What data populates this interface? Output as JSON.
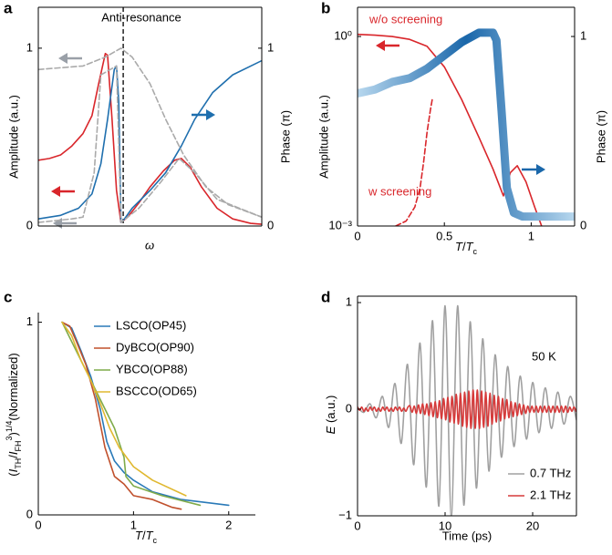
{
  "chart_data": [
    {
      "type": "line",
      "panel_label": "a",
      "annotation": "Anti-resonance",
      "vline": 0.38,
      "xlabel": "ω",
      "ylabel": "Amplitude (a.u.)",
      "y2label": "Phase (π)",
      "box": true,
      "xlim": [
        0,
        1
      ],
      "xticks": [],
      "ylim": [
        0,
        1.23
      ],
      "yticks": [
        0,
        1
      ],
      "y2lim": [
        0,
        1.23
      ],
      "y2ticks": [
        0,
        1
      ],
      "series": [
        {
          "color": "#d9262b",
          "x": [
            0,
            0.05,
            0.1,
            0.15,
            0.2,
            0.24,
            0.27,
            0.3,
            0.31,
            0.33,
            0.35,
            0.37,
            0.4,
            0.45,
            0.5,
            0.56,
            0.61,
            0.64,
            0.68,
            0.73,
            0.8,
            0.87,
            0.95,
            1
          ],
          "values": [
            0.37,
            0.38,
            0.4,
            0.45,
            0.52,
            0.62,
            0.8,
            0.97,
            0.96,
            0.6,
            0.2,
            0.02,
            0.05,
            0.13,
            0.22,
            0.31,
            0.37,
            0.38,
            0.33,
            0.22,
            0.1,
            0.04,
            0.015,
            0.01
          ]
        },
        {
          "color": "#1f6fae",
          "axis": "y2",
          "x": [
            0,
            0.1,
            0.18,
            0.24,
            0.28,
            0.31,
            0.34,
            0.35,
            0.36,
            0.37,
            0.38,
            0.42,
            0.5,
            0.57,
            0.64,
            0.7,
            0.78,
            0.87,
            1
          ],
          "values": [
            0.04,
            0.06,
            0.1,
            0.18,
            0.35,
            0.6,
            0.88,
            0.9,
            0.7,
            0.02,
            0.03,
            0.1,
            0.2,
            0.3,
            0.45,
            0.6,
            0.75,
            0.85,
            0.93
          ]
        },
        {
          "color": "#aaaaaa",
          "dash": true,
          "x": [
            0,
            0.1,
            0.2,
            0.3,
            0.37,
            0.42,
            0.5,
            0.57,
            0.65,
            0.75,
            0.85,
            1
          ],
          "values": [
            0.88,
            0.89,
            0.9,
            0.95,
            1,
            0.95,
            0.8,
            0.6,
            0.4,
            0.22,
            0.12,
            0.05
          ]
        },
        {
          "color": "#aaaaaa",
          "dash": true,
          "axis": "y2",
          "x": [
            0,
            0.15,
            0.2,
            0.25,
            0.28,
            0.35,
            0.37,
            0.45,
            0.55,
            0.63,
            0.7,
            0.8,
            1
          ],
          "values": [
            0.02,
            0.04,
            0.05,
            0.3,
            0.85,
            0.9,
            0.02,
            0.1,
            0.25,
            0.38,
            0.3,
            0.15,
            0.05
          ]
        }
      ]
    },
    {
      "type": "line",
      "panel_label": "b",
      "xlabel": [
        "T",
        "/",
        "T",
        "c"
      ],
      "ylabel": "Amplitude (a.u.)",
      "y2label": "Phase (π)",
      "box": true,
      "xlim": [
        0,
        1.25
      ],
      "xticks": [
        0,
        0.5,
        1
      ],
      "ylim": [
        0.001,
        2.9
      ],
      "ylog": true,
      "yticks": [
        {
          "value": 1,
          "label": "10⁰"
        },
        {
          "value": 0.001,
          "label": "10⁻³"
        }
      ],
      "y2lim": [
        0,
        1.154
      ],
      "y2ticks": [
        0,
        1
      ],
      "series": [
        {
          "name": "w/o screening",
          "color": "#d9262b",
          "x": [
            0,
            0.1,
            0.2,
            0.3,
            0.4,
            0.5,
            0.6,
            0.7,
            0.78,
            0.84,
            0.88,
            0.92,
            0.97,
            1.02,
            1.06
          ],
          "values": [
            1.08,
            1.05,
            1.0,
            0.9,
            0.7,
            0.33,
            0.1,
            0.025,
            0.008,
            0.003,
            0.007,
            0.009,
            0.005,
            0.002,
            0.001
          ]
        },
        {
          "name": "w screening",
          "color": "#d9262b",
          "dash": true,
          "x": [
            0.22,
            0.28,
            0.33,
            0.36,
            0.38,
            0.4,
            0.42,
            0.43
          ],
          "values": [
            0.001,
            0.0012,
            0.002,
            0.004,
            0.01,
            0.03,
            0.07,
            0.1
          ]
        },
        {
          "color": "#1a67aa",
          "axis": "y2",
          "line_width": 9,
          "gradient": [
            "#b7d7ee",
            "#1a67aa",
            "#b7d7ee"
          ],
          "x": [
            0,
            0.1,
            0.2,
            0.3,
            0.4,
            0.5,
            0.6,
            0.7,
            0.78,
            0.8,
            0.83,
            0.86,
            0.9,
            0.95,
            1.25
          ],
          "values": [
            0.7,
            0.72,
            0.76,
            0.78,
            0.83,
            0.9,
            0.97,
            1.02,
            1.02,
            0.98,
            0.6,
            0.2,
            0.07,
            0.05,
            0.05
          ]
        }
      ]
    },
    {
      "type": "line",
      "panel_label": "c",
      "xlabel": [
        "T",
        "/",
        "T",
        "c"
      ],
      "ylabel": [
        "(",
        "I",
        "TH",
        "/",
        "I",
        "FH",
        "3",
        ")",
        "1/4",
        "(Normalized)"
      ],
      "box": false,
      "xlim": [
        0,
        2.28
      ],
      "xticks": [
        0,
        1,
        2
      ],
      "ylim": [
        0,
        1.05
      ],
      "yticks": [
        0,
        1
      ],
      "legend": "upper center",
      "series": [
        {
          "name": "LSCO(OP45)",
          "color": "#2a7ab8",
          "x": [
            0.25,
            0.35,
            0.45,
            0.55,
            0.65,
            0.72,
            0.8,
            0.9,
            1,
            1.2,
            1.5,
            2
          ],
          "values": [
            1,
            0.97,
            0.85,
            0.72,
            0.55,
            0.38,
            0.28,
            0.22,
            0.18,
            0.12,
            0.08,
            0.05
          ]
        },
        {
          "name": "DyBCO(OP90)",
          "color": "#c0502c",
          "x": [
            0.25,
            0.33,
            0.4,
            0.5,
            0.6,
            0.7,
            0.8,
            0.9,
            1,
            1.2,
            1.4,
            1.5
          ],
          "values": [
            1,
            0.98,
            0.9,
            0.78,
            0.6,
            0.35,
            0.2,
            0.16,
            0.1,
            0.08,
            0.04,
            0.03
          ]
        },
        {
          "name": "YBCO(OP88)",
          "color": "#7fab4a",
          "x": [
            0.25,
            0.3,
            0.4,
            0.5,
            0.6,
            0.7,
            0.8,
            0.9,
            0.92,
            1,
            1.3,
            1.7
          ],
          "values": [
            1,
            0.95,
            0.85,
            0.75,
            0.65,
            0.55,
            0.45,
            0.3,
            0.2,
            0.15,
            0.1,
            0.05
          ]
        },
        {
          "name": "BSCCO(OD65)",
          "color": "#e0b830",
          "x": [
            0.25,
            0.35,
            0.45,
            0.55,
            0.65,
            0.75,
            0.85,
            1,
            1.2,
            1.55
          ],
          "values": [
            1,
            0.93,
            0.8,
            0.7,
            0.58,
            0.45,
            0.35,
            0.25,
            0.18,
            0.1
          ]
        }
      ]
    },
    {
      "type": "line",
      "panel_label": "d",
      "annotation": "50 K",
      "xlabel": "Time (ps)",
      "ylabel": [
        "E",
        " (a.u.)"
      ],
      "box": true,
      "smooth": true,
      "xlim": [
        0,
        25
      ],
      "xticks": [
        0,
        10,
        20
      ],
      "ylim": [
        -1,
        1.06
      ],
      "yticks": [
        {
          "value": -1,
          "label": "−1"
        },
        0,
        1
      ],
      "legend": "lower right",
      "series": [
        {
          "name": "0.7 THz",
          "color": "#a0a0a0",
          "x": [
            0,
            0.71,
            1.43,
            2.14,
            2.86,
            3.57,
            4.29,
            5,
            5.71,
            6.43,
            7.14,
            7.86,
            8.57,
            9.29,
            10,
            10.71,
            11.43,
            12.14,
            12.86,
            13.57,
            14.29,
            15,
            15.71,
            16.43,
            17.14,
            17.86,
            18.57,
            19.29,
            20,
            20.71,
            21.43,
            22.14,
            22.86,
            23.57,
            24.29,
            25
          ],
          "values": [
            0.02,
            -0.03,
            0.05,
            -0.08,
            0.12,
            -0.17,
            0.24,
            -0.32,
            0.42,
            -0.52,
            0.62,
            -0.73,
            0.83,
            -0.91,
            0.97,
            -1,
            0.97,
            -0.9,
            0.82,
            -0.74,
            0.66,
            -0.58,
            0.51,
            -0.45,
            0.4,
            -0.35,
            0.31,
            -0.28,
            0.25,
            -0.22,
            0.2,
            -0.18,
            0.16,
            -0.14,
            0.12,
            -0.1
          ]
        },
        {
          "name": "2.1 THz",
          "color": "#d63a3a",
          "x": [
            0,
            0.24,
            0.48,
            0.72,
            0.96,
            1.2,
            1.44,
            1.68,
            1.92,
            2.16,
            2.4,
            2.64,
            2.88,
            3.12,
            3.36,
            3.6,
            3.84,
            4.08,
            4.32,
            4.56,
            4.8,
            5.04,
            5.28,
            5.52,
            5.76,
            6,
            6.24,
            6.48,
            6.72,
            6.96,
            7.2,
            7.44,
            7.68,
            7.92,
            8.16,
            8.4,
            8.64,
            8.88,
            9.12,
            9.36,
            9.6,
            9.84,
            10.08,
            10.32,
            10.56,
            10.8,
            11.04,
            11.28,
            11.52,
            11.76,
            12,
            12.24,
            12.48,
            12.72,
            12.96,
            13.2,
            13.44,
            13.68,
            13.92,
            14.16,
            14.4,
            14.64,
            14.88,
            15.12,
            15.36,
            15.6,
            15.84,
            16.08,
            16.32,
            16.56,
            16.8,
            17.04,
            17.28,
            17.52,
            17.76,
            18,
            18.24,
            18.48,
            18.72,
            18.96,
            19.2,
            19.44,
            19.68,
            19.92,
            20.16,
            20.4,
            20.64,
            20.88,
            21.12,
            21.36,
            21.6,
            21.84,
            22.08,
            22.32,
            22.56,
            22.8,
            23.04,
            23.28,
            23.52,
            23.76,
            24,
            24.24,
            24.48,
            24.72,
            24.96
          ],
          "values": [
            0.02,
            -0.01,
            0.02,
            -0.02,
            0.01,
            -0.02,
            0.02,
            -0.01,
            0.02,
            -0.02,
            0.01,
            -0.02,
            0.02,
            -0.01,
            0.02,
            -0.02,
            0.01,
            -0.02,
            0.02,
            -0.01,
            0.02,
            -0.02,
            0.01,
            -0.02,
            0.02,
            0.03,
            -0.03,
            0.03,
            -0.04,
            0.04,
            -0.04,
            0.05,
            -0.05,
            0.05,
            -0.06,
            0.06,
            -0.07,
            0.07,
            -0.08,
            0.08,
            -0.09,
            0.1,
            -0.1,
            0.11,
            -0.12,
            0.12,
            -0.13,
            0.14,
            -0.14,
            0.15,
            -0.16,
            0.16,
            -0.17,
            0.17,
            -0.18,
            0.18,
            -0.18,
            0.18,
            -0.18,
            0.17,
            -0.17,
            0.16,
            -0.16,
            0.15,
            -0.14,
            0.13,
            -0.12,
            0.12,
            -0.11,
            0.1,
            -0.09,
            0.09,
            -0.08,
            0.07,
            -0.07,
            0.06,
            -0.06,
            0.05,
            -0.05,
            0.04,
            -0.04,
            0.03,
            -0.03,
            0.03,
            -0.03,
            0.03,
            -0.03,
            0.03,
            -0.03,
            0.03,
            -0.03,
            0.03,
            -0.03,
            0.03,
            -0.03,
            0.03,
            -0.03,
            0.03,
            -0.03,
            0.03,
            -0.03,
            0.02,
            -0.02,
            0.02,
            -0.02
          ]
        }
      ]
    }
  ]
}
